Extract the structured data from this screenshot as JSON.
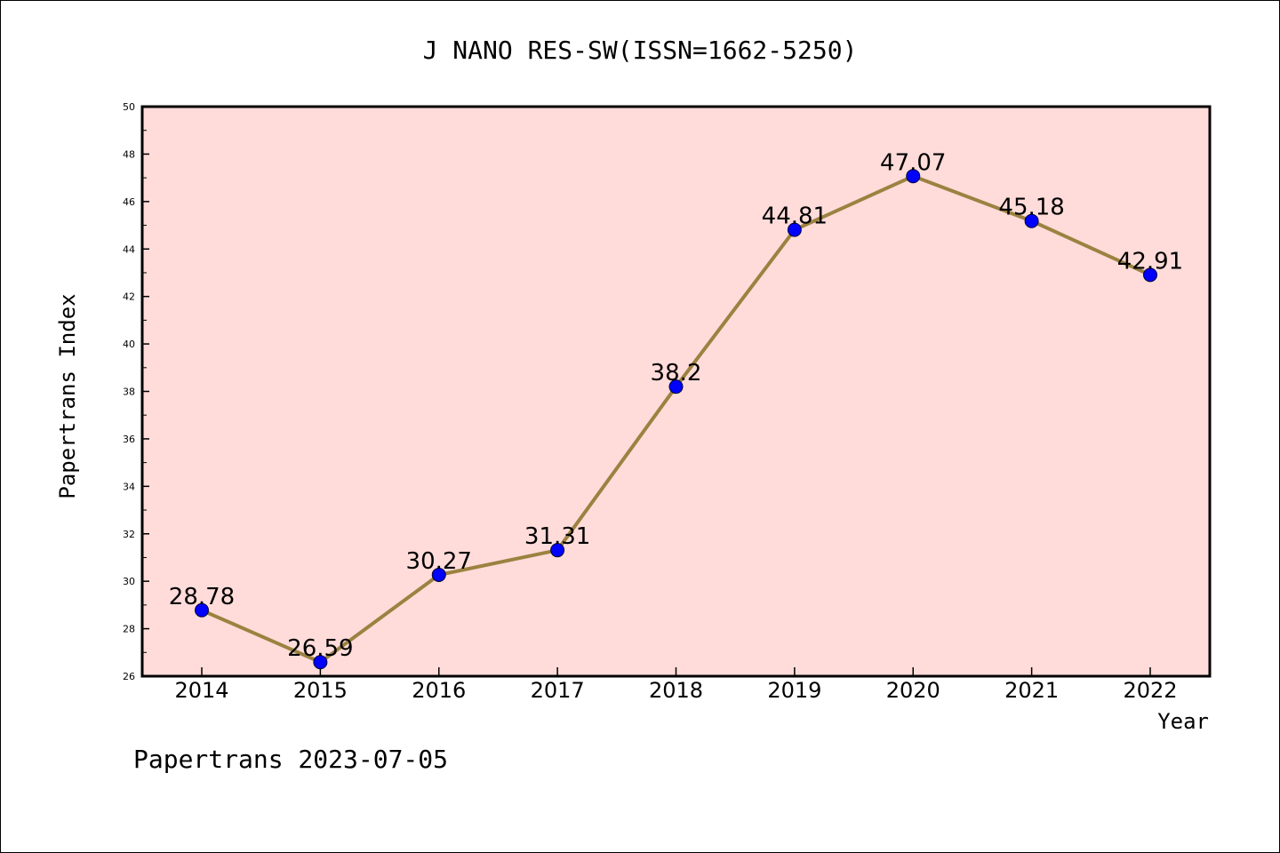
{
  "chart_data": {
    "type": "line",
    "title": "J NANO RES-SW(ISSN=1662-5250)",
    "xlabel": "Year",
    "ylabel": "Papertrans Index",
    "categories": [
      "2014",
      "2015",
      "2016",
      "2017",
      "2018",
      "2019",
      "2020",
      "2021",
      "2022"
    ],
    "series": [
      {
        "values": [
          28.78,
          26.59,
          30.27,
          31.31,
          38.2,
          44.81,
          47.07,
          45.18,
          42.91
        ],
        "labels": [
          "28.78",
          "26.59",
          "30.27",
          "31.31",
          "38.2",
          "44.81",
          "47.07",
          "45.18",
          "42.91"
        ]
      }
    ],
    "ylim": [
      26,
      50
    ],
    "yticks": [
      "26",
      "28",
      "30",
      "32",
      "34",
      "36",
      "38",
      "40",
      "42",
      "44",
      "46",
      "48",
      "50"
    ],
    "grid": false,
    "footer": "Papertrans 2023-07-05",
    "colors": {
      "plot_background": "#FFDCDA",
      "line": "#9B8240",
      "marker": "#0000FF",
      "axis": "#000000"
    }
  }
}
